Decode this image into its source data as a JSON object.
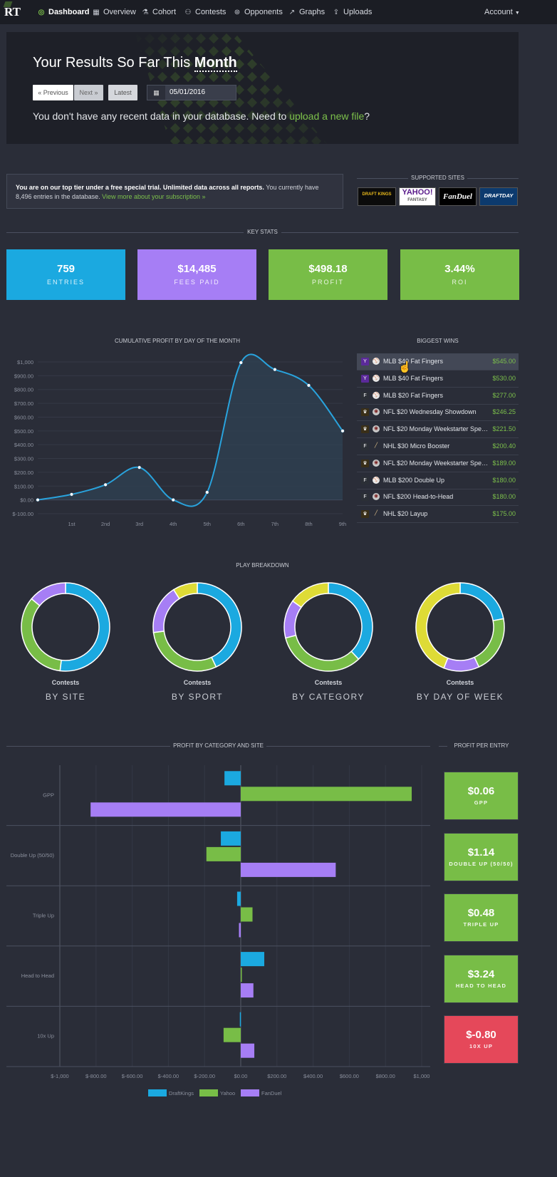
{
  "nav": {
    "logo": "RT",
    "items": [
      {
        "label": "Dashboard",
        "icon": "dashboard-icon"
      },
      {
        "label": "Overview",
        "icon": "calendar-icon"
      },
      {
        "label": "Cohort",
        "icon": "flask-icon"
      },
      {
        "label": "Contests",
        "icon": "contests-icon"
      },
      {
        "label": "Opponents",
        "icon": "opponents-icon"
      },
      {
        "label": "Graphs",
        "icon": "graph-icon"
      },
      {
        "label": "Uploads",
        "icon": "upload-icon"
      }
    ],
    "account": "Account"
  },
  "hero": {
    "title_prefix": "Your Results So Far This",
    "title_period": "Month",
    "prev_label": "« Previous",
    "next_label": "Next »",
    "latest_label": "Latest",
    "date_value": "05/01/2016",
    "msg_prefix": "You don't have any recent data in your database. Need to",
    "msg_link": "upload a new file",
    "msg_suffix": "?"
  },
  "trial": {
    "bold": "You are on our top tier under a free special trial. Unlimited data across all reports.",
    "text": "You currently have 8,496 entries in the database.",
    "link": "View more about your subscription »"
  },
  "supported_sites": {
    "title": "SUPPORTED SITES",
    "logos": [
      "DRAFT KINGS",
      "YAHOO!",
      "FANTASY",
      "FanDuel",
      "DRAFTDAY"
    ]
  },
  "key_stats": {
    "title": "KEY STATS",
    "items": [
      {
        "value": "759",
        "label": "ENTRIES",
        "color": "#1ba9e0"
      },
      {
        "value": "$14,485",
        "label": "FEES PAID",
        "color": "#a67ef5"
      },
      {
        "value": "$498.18",
        "label": "PROFIT",
        "color": "#78bd47"
      },
      {
        "value": "3.44%",
        "label": "ROI",
        "color": "#78bd47"
      }
    ]
  },
  "cumulative_chart": {
    "title": "CUMULATIVE PROFIT BY DAY OF THE MONTH"
  },
  "biggest_wins": {
    "title": "BIGGEST WINS",
    "rows": [
      {
        "site": "yahoo",
        "sport": "baseball",
        "name": "MLB $40 Fat Fingers",
        "amount": "$545.00",
        "highlight": true
      },
      {
        "site": "yahoo",
        "sport": "baseball",
        "name": "MLB $40 Fat Fingers",
        "amount": "$530.00"
      },
      {
        "site": "fanduel",
        "sport": "baseball",
        "name": "MLB $20 Fat Fingers",
        "amount": "$277.00"
      },
      {
        "site": "draftkings",
        "sport": "football",
        "name": "NFL $20 Wednesday Showdown",
        "amount": "$246.25"
      },
      {
        "site": "draftkings",
        "sport": "football",
        "name": "NFL $20 Monday Weekstarter Special",
        "amount": "$221.50"
      },
      {
        "site": "fanduel",
        "sport": "hockey",
        "name": "NHL $30 Micro Booster",
        "amount": "$200.40"
      },
      {
        "site": "draftkings",
        "sport": "football",
        "name": "NFL $20 Monday Weekstarter Special",
        "amount": "$189.00"
      },
      {
        "site": "fanduel",
        "sport": "baseball",
        "name": "MLB $200 Double Up",
        "amount": "$180.00"
      },
      {
        "site": "fanduel",
        "sport": "football",
        "name": "NFL $200 Head-to-Head",
        "amount": "$180.00"
      },
      {
        "site": "draftkings",
        "sport": "hockey",
        "name": "NHL $20 Layup",
        "amount": "$175.00"
      }
    ]
  },
  "play_breakdown": {
    "title": "PLAY BREAKDOWN",
    "center_label": "Contests",
    "charts": [
      {
        "title": "BY SITE",
        "segments": [
          {
            "value": 52,
            "color": "#1ba9e0"
          },
          {
            "value": 34,
            "color": "#78bd47"
          },
          {
            "value": 14,
            "color": "#a67ef5"
          }
        ]
      },
      {
        "title": "BY SPORT",
        "segments": [
          {
            "value": 43,
            "color": "#1ba9e0"
          },
          {
            "value": 30,
            "color": "#78bd47"
          },
          {
            "value": 18,
            "color": "#a67ef5"
          },
          {
            "value": 9,
            "color": "#dedb36"
          }
        ]
      },
      {
        "title": "BY CATEGORY",
        "segments": [
          {
            "value": 38,
            "color": "#1ba9e0"
          },
          {
            "value": 33,
            "color": "#78bd47"
          },
          {
            "value": 14,
            "color": "#a67ef5"
          },
          {
            "value": 15,
            "color": "#dedb36"
          }
        ]
      },
      {
        "title": "BY DAY OF WEEK",
        "segments": [
          {
            "value": 22,
            "color": "#1ba9e0"
          },
          {
            "value": 21,
            "color": "#78bd47"
          },
          {
            "value": 13,
            "color": "#a67ef5"
          },
          {
            "value": 44,
            "color": "#dedb36"
          }
        ]
      }
    ]
  },
  "profit_by_category": {
    "title": "PROFIT BY CATEGORY AND SITE"
  },
  "profit_per_entry": {
    "title": "PROFIT PER ENTRY",
    "items": [
      {
        "value": "$0.06",
        "label": "GPP",
        "color": "#78bd47"
      },
      {
        "value": "$1.14",
        "label": "DOUBLE UP (50/50)",
        "color": "#78bd47"
      },
      {
        "value": "$0.48",
        "label": "TRIPLE UP",
        "color": "#78bd47"
      },
      {
        "value": "$3.24",
        "label": "HEAD TO HEAD",
        "color": "#78bd47"
      },
      {
        "value": "$-0.80",
        "label": "10X UP",
        "color": "#e5485a"
      }
    ]
  },
  "chart_data": [
    {
      "type": "area",
      "title": "CUMULATIVE PROFIT BY DAY OF THE MONTH",
      "x": [
        "1st",
        "2nd",
        "3rd",
        "4th",
        "5th",
        "6th",
        "7th",
        "8th",
        "9th"
      ],
      "y_at_start": 0,
      "values": [
        40,
        110,
        235,
        0,
        55,
        995,
        945,
        830,
        500
      ],
      "ylim": [
        -100,
        1000
      ],
      "yticks": [
        "$-100.00",
        "$0.00",
        "$100.00",
        "$200.00",
        "$300.00",
        "$400.00",
        "$500.00",
        "$600.00",
        "$700.00",
        "$800.00",
        "$900.00",
        "$1,000"
      ],
      "ytick_values": [
        -100,
        0,
        100,
        200,
        300,
        400,
        500,
        600,
        700,
        800,
        900,
        1000
      ],
      "line_color": "#29a3dd"
    },
    {
      "type": "bar",
      "orientation": "horizontal",
      "title": "PROFIT BY CATEGORY AND SITE",
      "categories": [
        "GPP",
        "Double Up (50/50)",
        "Triple Up",
        "Head to Head",
        "10x Up"
      ],
      "series": [
        {
          "name": "DraftKings",
          "color": "#1ba9e0",
          "values": [
            -90,
            -110,
            -20,
            130,
            -5
          ]
        },
        {
          "name": "Yahoo",
          "color": "#78bd47",
          "values": [
            945,
            -190,
            65,
            5,
            -95
          ]
        },
        {
          "name": "FanDuel",
          "color": "#a67ef5",
          "values": [
            -830,
            525,
            -10,
            70,
            75
          ]
        }
      ],
      "xlim": [
        -1000,
        1000
      ],
      "xticks": [
        "$-1,000",
        "$-800.00",
        "$-600.00",
        "$-400.00",
        "$-200.00",
        "$0.00",
        "$200.00",
        "$400.00",
        "$600.00",
        "$800.00",
        "$1,000"
      ],
      "xtick_values": [
        -1000,
        -800,
        -600,
        -400,
        -200,
        0,
        200,
        400,
        600,
        800,
        1000
      ],
      "legend": "bottom"
    }
  ]
}
